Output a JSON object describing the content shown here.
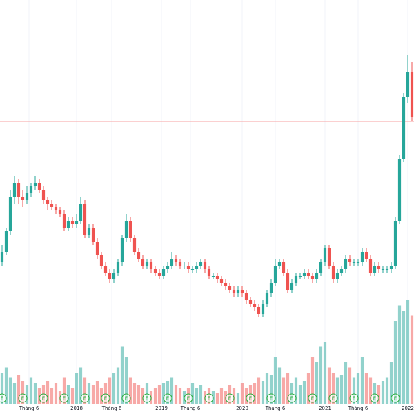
{
  "chart_data": {
    "type": "candlestick",
    "x": [
      0,
      1,
      2,
      3,
      4,
      5,
      6,
      7,
      8,
      9,
      10,
      11,
      12,
      13,
      14,
      15,
      16,
      17,
      18,
      19,
      20,
      21,
      22,
      23,
      24,
      25,
      26,
      27,
      28,
      29,
      30,
      31,
      32,
      33,
      34,
      35,
      36,
      37,
      38,
      39,
      40,
      41,
      42,
      43,
      44,
      45,
      46,
      47,
      48,
      49,
      50,
      51,
      52,
      53,
      54,
      55,
      56,
      57,
      58,
      59,
      60,
      61,
      62,
      63,
      64,
      65,
      66,
      67,
      68,
      69,
      70,
      71,
      72,
      73,
      74,
      75,
      76,
      77,
      78,
      79,
      80,
      81,
      82,
      83,
      84,
      85,
      86,
      87,
      88,
      89,
      90,
      91,
      92,
      93,
      94,
      95,
      96,
      97,
      98,
      99
    ],
    "ohlc": [
      [
        22,
        24.5,
        21.5,
        23.5
      ],
      [
        23.5,
        27,
        23,
        26.5
      ],
      [
        26.5,
        32.5,
        26,
        31.5
      ],
      [
        31.5,
        34.5,
        30.5,
        33.5
      ],
      [
        33.5,
        34,
        30.5,
        31.5
      ],
      [
        31.5,
        32.5,
        30,
        31
      ],
      [
        31,
        33,
        30.5,
        32
      ],
      [
        32,
        33.5,
        31.5,
        33
      ],
      [
        33,
        34.5,
        32.5,
        33.5
      ],
      [
        33.5,
        34,
        32,
        32.5
      ],
      [
        32.5,
        33,
        30.5,
        31
      ],
      [
        31,
        31.5,
        29.5,
        30.5
      ],
      [
        30.5,
        31,
        29.5,
        30
      ],
      [
        30,
        30.5,
        29,
        29.5
      ],
      [
        29.5,
        30,
        28.5,
        29
      ],
      [
        29,
        29.5,
        26.5,
        27
      ],
      [
        27,
        28.5,
        26.5,
        28
      ],
      [
        28,
        28.5,
        27,
        27.5
      ],
      [
        27.5,
        29,
        27,
        28
      ],
      [
        28,
        31.5,
        27.5,
        30.5
      ],
      [
        30.5,
        31,
        25.5,
        26
      ],
      [
        26,
        27.5,
        25.5,
        27
      ],
      [
        27,
        27.5,
        24.5,
        25
      ],
      [
        25,
        25.5,
        22.5,
        23
      ],
      [
        23,
        23.5,
        21,
        21.5
      ],
      [
        21.5,
        22,
        20,
        20.5
      ],
      [
        20.5,
        21,
        19,
        19.5
      ],
      [
        19.5,
        21,
        19,
        20.5
      ],
      [
        20.5,
        22.5,
        20,
        22
      ],
      [
        22,
        26,
        21.5,
        25.5
      ],
      [
        25.5,
        29,
        25,
        28
      ],
      [
        28,
        28.5,
        25,
        25.5
      ],
      [
        25.5,
        26,
        23,
        23.5
      ],
      [
        23.5,
        24,
        22,
        22.5
      ],
      [
        22.5,
        23,
        21,
        21.5
      ],
      [
        21.5,
        22.5,
        21,
        22
      ],
      [
        22,
        22.5,
        20.5,
        21
      ],
      [
        21,
        21.5,
        20,
        20.5
      ],
      [
        20.5,
        21,
        19.5,
        20
      ],
      [
        20,
        21.5,
        19.5,
        21
      ],
      [
        21,
        22,
        20.5,
        21.5
      ],
      [
        21.5,
        23.5,
        21,
        22.5
      ],
      [
        22.5,
        23,
        21.5,
        22
      ],
      [
        22,
        22.5,
        21,
        21.5
      ],
      [
        21.5,
        22,
        21,
        21.5
      ],
      [
        21.5,
        22,
        20.5,
        21
      ],
      [
        21,
        21.5,
        20.5,
        21
      ],
      [
        21,
        22,
        20.5,
        21.5
      ],
      [
        21.5,
        22.5,
        21,
        22
      ],
      [
        22,
        22.5,
        20.5,
        21
      ],
      [
        21,
        21.5,
        19.5,
        20
      ],
      [
        20,
        20.5,
        19.5,
        20
      ],
      [
        20,
        20.5,
        19,
        19.5
      ],
      [
        19.5,
        20,
        18.5,
        19
      ],
      [
        19,
        19.5,
        18,
        18.5
      ],
      [
        18.5,
        19,
        17.5,
        18
      ],
      [
        18,
        18.5,
        17,
        17.5
      ],
      [
        17.5,
        18.5,
        17,
        18
      ],
      [
        18,
        18.5,
        17,
        17.5
      ],
      [
        17.5,
        18,
        16,
        16.5
      ],
      [
        16.5,
        17,
        15.5,
        16
      ],
      [
        16,
        16.5,
        15,
        15.5
      ],
      [
        15.5,
        16,
        14,
        14.5
      ],
      [
        14.5,
        16.5,
        14,
        16
      ],
      [
        16,
        18,
        15.5,
        17.5
      ],
      [
        17.5,
        19.5,
        17,
        19
      ],
      [
        19,
        22.5,
        18.5,
        21.5
      ],
      [
        21.5,
        22.5,
        21,
        22
      ],
      [
        22,
        22.5,
        20,
        20.5
      ],
      [
        20.5,
        21,
        17.5,
        18
      ],
      [
        18,
        19.5,
        17.5,
        19
      ],
      [
        19,
        20.5,
        18.5,
        20
      ],
      [
        20,
        20.5,
        19.5,
        20
      ],
      [
        20,
        21,
        19.5,
        20.5
      ],
      [
        20.5,
        21,
        19.5,
        20
      ],
      [
        20,
        20.5,
        19,
        19.5
      ],
      [
        19.5,
        21,
        19,
        20.5
      ],
      [
        20.5,
        22.5,
        20,
        22
      ],
      [
        22,
        24.5,
        21.5,
        24
      ],
      [
        24,
        24.5,
        21,
        21.5
      ],
      [
        21.5,
        22,
        19,
        19.5
      ],
      [
        19.5,
        21,
        19,
        20.5
      ],
      [
        20.5,
        21.5,
        20,
        21
      ],
      [
        21,
        23,
        20.5,
        22.5
      ],
      [
        22.5,
        23,
        21.5,
        22
      ],
      [
        22,
        22.5,
        21.5,
        22
      ],
      [
        22,
        22.5,
        21.5,
        22
      ],
      [
        22,
        24,
        21.5,
        23.5
      ],
      [
        23.5,
        24,
        22,
        22.5
      ],
      [
        22.5,
        23,
        20,
        20.5
      ],
      [
        20.5,
        22,
        20,
        21.5
      ],
      [
        21.5,
        22,
        20.5,
        21
      ],
      [
        21,
        21.5,
        20.5,
        21
      ],
      [
        21,
        21.5,
        20.5,
        21
      ],
      [
        21,
        22,
        20.5,
        21.5
      ],
      [
        21.5,
        28.5,
        21,
        28
      ],
      [
        28,
        37.5,
        27.5,
        37
      ],
      [
        37,
        46.5,
        36.5,
        46
      ],
      [
        46,
        52,
        45,
        49.5
      ],
      [
        49.5,
        51,
        42.5,
        43
      ]
    ],
    "volume": [
      30,
      35,
      25,
      20,
      28,
      22,
      18,
      25,
      20,
      15,
      18,
      22,
      15,
      20,
      12,
      25,
      18,
      15,
      30,
      35,
      25,
      20,
      18,
      22,
      15,
      20,
      25,
      30,
      35,
      55,
      45,
      25,
      20,
      18,
      15,
      20,
      12,
      15,
      18,
      20,
      22,
      25,
      18,
      15,
      12,
      15,
      20,
      15,
      18,
      12,
      15,
      12,
      10,
      15,
      12,
      18,
      15,
      10,
      20,
      15,
      18,
      20,
      25,
      22,
      30,
      28,
      45,
      35,
      25,
      30,
      20,
      25,
      18,
      22,
      30,
      45,
      40,
      55,
      60,
      35,
      30,
      25,
      28,
      40,
      35,
      25,
      30,
      45,
      30,
      25,
      20,
      18,
      22,
      25,
      40,
      80,
      95,
      90,
      100,
      85
    ],
    "up_color": "#26a69a",
    "down_color": "#ef5350",
    "xlim": [
      -0.5,
      99.5
    ],
    "ylim": [
      0,
      60
    ],
    "vlim": [
      0,
      100
    ],
    "xticks": [
      {
        "value": 6.5,
        "label": "Tháng 6"
      },
      {
        "value": 18,
        "label": "2018"
      },
      {
        "value": 26.5,
        "label": "Tháng 6"
      },
      {
        "value": 38.5,
        "label": "2019"
      },
      {
        "value": 45.5,
        "label": "Tháng 6"
      },
      {
        "value": 58,
        "label": "2020"
      },
      {
        "value": 66,
        "label": "Tháng 6"
      },
      {
        "value": 78,
        "label": "2021"
      },
      {
        "value": 86,
        "label": "Tháng 6"
      },
      {
        "value": 98,
        "label": "2022"
      }
    ],
    "price_line": 42.4,
    "price_line_color": "#f7a1a1",
    "events": [
      {
        "x": 0,
        "label": "E"
      },
      {
        "x": 5,
        "label": "E"
      },
      {
        "x": 10,
        "label": "E"
      },
      {
        "x": 15,
        "label": "E"
      },
      {
        "x": 20,
        "label": "E"
      },
      {
        "x": 25,
        "label": "E"
      },
      {
        "x": 30,
        "label": "E"
      },
      {
        "x": 35,
        "label": "E"
      },
      {
        "x": 40,
        "label": "E"
      },
      {
        "x": 45,
        "label": "E"
      },
      {
        "x": 50,
        "label": "E"
      },
      {
        "x": 55,
        "label": "E"
      },
      {
        "x": 60,
        "label": "E"
      },
      {
        "x": 65,
        "label": "E"
      },
      {
        "x": 70,
        "label": "E"
      },
      {
        "x": 75,
        "label": "E"
      },
      {
        "x": 80,
        "label": "E"
      },
      {
        "x": 85,
        "label": "E"
      },
      {
        "x": 90,
        "label": "E"
      },
      {
        "x": 95,
        "label": "E"
      }
    ],
    "event_color": "#22ab36",
    "grid": true
  }
}
